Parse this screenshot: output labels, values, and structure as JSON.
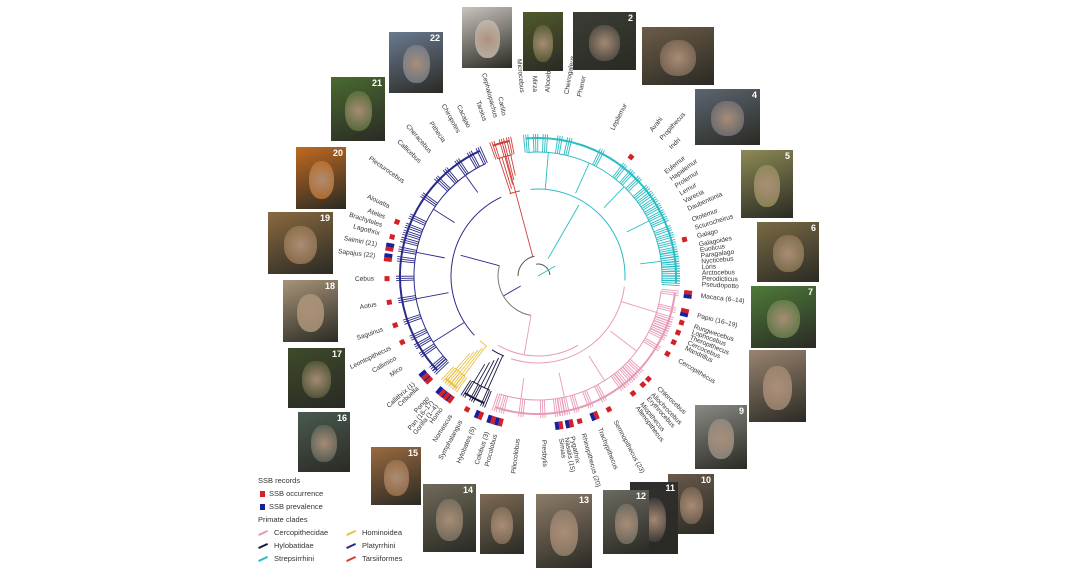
{
  "colors": {
    "Cercopithecidae": "#e79ab8",
    "Hylobatidae": "#1a1a40",
    "Strepsirrhini": "#2bbcc4",
    "Hominoidea": "#e8c24a",
    "Platyrrhini": "#2a2a8a",
    "Tarsiiformes": "#d0403a",
    "occurrence": "#d42027",
    "prevalence": "#1b1f9a"
  },
  "taxa": [
    {
      "name": "Tarsius",
      "clade": "Tarsiiformes"
    },
    {
      "name": "Cephalopachus",
      "clade": "Tarsiiformes"
    },
    {
      "name": "Carlito",
      "clade": "Tarsiiformes"
    },
    {
      "name": "Microcebus",
      "clade": "Strepsirrhini"
    },
    {
      "name": "Mirza",
      "clade": "Strepsirrhini"
    },
    {
      "name": "Allocebus",
      "clade": "Strepsirrhini"
    },
    {
      "name": "Cheirogaleus",
      "clade": "Strepsirrhini"
    },
    {
      "name": "Phaner",
      "clade": "Strepsirrhini"
    },
    {
      "name": "Lepilemur",
      "clade": "Strepsirrhini"
    },
    {
      "name": "Avahi",
      "clade": "Strepsirrhini",
      "ssb": "occurrence"
    },
    {
      "name": "Propithecus",
      "clade": "Strepsirrhini"
    },
    {
      "name": "Indri",
      "clade": "Strepsirrhini"
    },
    {
      "name": "Eulemur",
      "clade": "Strepsirrhini"
    },
    {
      "name": "Hapalemur",
      "clade": "Strepsirrhini"
    },
    {
      "name": "Prolemur",
      "clade": "Strepsirrhini"
    },
    {
      "name": "Lemur",
      "clade": "Strepsirrhini"
    },
    {
      "name": "Varecia",
      "clade": "Strepsirrhini"
    },
    {
      "name": "Daubentonia",
      "clade": "Strepsirrhini"
    },
    {
      "name": "Otolemur",
      "clade": "Strepsirrhini"
    },
    {
      "name": "Sciurocheirus",
      "clade": "Strepsirrhini"
    },
    {
      "name": "Galago",
      "clade": "Strepsirrhini",
      "ssb": "occurrence"
    },
    {
      "name": "Galagoides",
      "clade": "Strepsirrhini"
    },
    {
      "name": "Euoticus",
      "clade": "Strepsirrhini"
    },
    {
      "name": "Paragalago",
      "clade": "Strepsirrhini"
    },
    {
      "name": "Nycticebus",
      "clade": "Strepsirrhini"
    },
    {
      "name": "Loris",
      "clade": "Strepsirrhini"
    },
    {
      "name": "Arctocebus",
      "clade": "Strepsirrhini"
    },
    {
      "name": "Perodicticus",
      "clade": "Strepsirrhini"
    },
    {
      "name": "Pseudopotto",
      "clade": "Strepsirrhini"
    },
    {
      "name": "Macaca (6–14)",
      "clade": "Cercopithecidae",
      "ssb": "prevalence"
    },
    {
      "name": "Papio (16–19)",
      "clade": "Cercopithecidae",
      "ssb": "prevalence"
    },
    {
      "name": "Rungwecebus",
      "clade": "Cercopithecidae",
      "ssb": "occurrence"
    },
    {
      "name": "Lophocebus",
      "clade": "Cercopithecidae"
    },
    {
      "name": "Theropithecus",
      "clade": "Cercopithecidae",
      "ssb": "occurrence"
    },
    {
      "name": "Cercocebus",
      "clade": "Cercopithecidae"
    },
    {
      "name": "Mandrillus",
      "clade": "Cercopithecidae",
      "ssb": "occurrence"
    },
    {
      "name": "Cercopithecus",
      "clade": "Cercopithecidae",
      "ssb": "occurrence"
    },
    {
      "name": "Chlorocebus",
      "clade": "Cercopithecidae",
      "ssb": "occurrence"
    },
    {
      "name": "Allochrocebus",
      "clade": "Cercopithecidae",
      "ssb": "occurrence"
    },
    {
      "name": "Erythrocebus",
      "clade": "Cercopithecidae"
    },
    {
      "name": "Miopithecus",
      "clade": "Cercopithecidae",
      "ssb": "occurrence"
    },
    {
      "name": "Allenopithecus",
      "clade": "Cercopithecidae"
    },
    {
      "name": "Semnopithecus (23)",
      "clade": "Cercopithecidae",
      "ssb": "occurrence"
    },
    {
      "name": "Trachypithecus",
      "clade": "Cercopithecidae",
      "ssb": "prevalence"
    },
    {
      "name": "Rhinopithecus (20)",
      "clade": "Cercopithecidae",
      "ssb": "occurrence"
    },
    {
      "name": "Pygathrix",
      "clade": "Cercopithecidae",
      "ssb": "prevalence"
    },
    {
      "name": "Nasalis (15)",
      "clade": "Cercopithecidae"
    },
    {
      "name": "Simias",
      "clade": "Cercopithecidae",
      "ssb": "prevalence"
    },
    {
      "name": "Presbytis",
      "clade": "Cercopithecidae"
    },
    {
      "name": "Piliocolobus",
      "clade": "Cercopithecidae"
    },
    {
      "name": "Procolobus",
      "clade": "Cercopithecidae",
      "ssb": "prevalence"
    },
    {
      "name": "Colobus (3)",
      "clade": "Cercopithecidae",
      "ssb": "prevalence"
    },
    {
      "name": "Hylobates (5)",
      "clade": "Hylobatidae",
      "ssb": "prevalence"
    },
    {
      "name": "Symphalangus",
      "clade": "Hylobatidae",
      "ssb": "occurrence"
    },
    {
      "name": "Nomascus",
      "clade": "Hylobatidae"
    },
    {
      "name": "Homo",
      "clade": "Hominoidea",
      "ssb": "prevalence"
    },
    {
      "name": "Gorilla (1–4)",
      "clade": "Hominoidea",
      "ssb": "prevalence"
    },
    {
      "name": "Pan (16–17)",
      "clade": "Hominoidea",
      "ssb": "prevalence"
    },
    {
      "name": "Pongo",
      "clade": "Hominoidea"
    },
    {
      "name": "Cebuella",
      "clade": "Platyrrhini",
      "ssb": "prevalence"
    },
    {
      "name": "Callithrix (1)",
      "clade": "Platyrrhini",
      "ssb": "prevalence"
    },
    {
      "name": "Mico",
      "clade": "Platyrrhini"
    },
    {
      "name": "Callimico",
      "clade": "Platyrrhini"
    },
    {
      "name": "Leontopithecus",
      "clade": "Platyrrhini",
      "ssb": "occurrence"
    },
    {
      "name": "Saguinus",
      "clade": "Platyrrhini",
      "ssb": "occurrence"
    },
    {
      "name": "Aotus",
      "clade": "Platyrrhini",
      "ssb": "occurrence"
    },
    {
      "name": "Cebus",
      "clade": "Platyrrhini",
      "ssb": "occurrence"
    },
    {
      "name": "Sapajus (22)",
      "clade": "Platyrrhini",
      "ssb": "prevalence"
    },
    {
      "name": "Saimiri (21)",
      "clade": "Platyrrhini",
      "ssb": "prevalence"
    },
    {
      "name": "Lagothrix",
      "clade": "Platyrrhini",
      "ssb": "occurrence"
    },
    {
      "name": "Brachyteles",
      "clade": "Platyrrhini"
    },
    {
      "name": "Ateles",
      "clade": "Platyrrhini",
      "ssb": "occurrence"
    },
    {
      "name": "Alouatta",
      "clade": "Platyrrhini"
    },
    {
      "name": "Plecturocebus",
      "clade": "Platyrrhini"
    },
    {
      "name": "Callicebus",
      "clade": "Platyrrhini"
    },
    {
      "name": "Cheracebus",
      "clade": "Platyrrhini"
    },
    {
      "name": "Pithecia",
      "clade": "Platyrrhini"
    },
    {
      "name": "Chiropotes",
      "clade": "Platyrrhini"
    },
    {
      "name": "Cacajao",
      "clade": "Platyrrhini"
    }
  ],
  "photos": [
    {
      "number": "",
      "tone": "#c9c4bd"
    },
    {
      "number": "",
      "tone": "#4f5a2c"
    },
    {
      "number": "2",
      "tone": "#3a3d36"
    },
    {
      "number": "",
      "tone": "#6b5c48"
    },
    {
      "number": "4",
      "tone": "#5c6670"
    },
    {
      "number": "5",
      "tone": "#8d8a55"
    },
    {
      "number": "6",
      "tone": "#7a6a45"
    },
    {
      "number": "7",
      "tone": "#4e7a3a"
    },
    {
      "number": "",
      "tone": "#9a8470"
    },
    {
      "number": "9",
      "tone": "#8a8a84"
    },
    {
      "number": "10",
      "tone": "#6a5a4a"
    },
    {
      "number": "11",
      "tone": "#2f2f2f"
    },
    {
      "number": "12",
      "tone": "#6a6a60"
    },
    {
      "number": "13",
      "tone": "#8d7b68"
    },
    {
      "number": "",
      "tone": "#7c6a55"
    },
    {
      "number": "14",
      "tone": "#6f6a5a"
    },
    {
      "number": "15",
      "tone": "#9a6a40"
    },
    {
      "number": "16",
      "tone": "#4a5a50"
    },
    {
      "number": "17",
      "tone": "#3e4a2a"
    },
    {
      "number": "18",
      "tone": "#a89478"
    },
    {
      "number": "19",
      "tone": "#8a6a40"
    },
    {
      "number": "20",
      "tone": "#c06a20"
    },
    {
      "number": "21",
      "tone": "#4a6a30"
    },
    {
      "number": "22",
      "tone": "#6a7a90"
    }
  ],
  "legend": {
    "ssb_title": "SSB records",
    "occurrence": "SSB occurrence",
    "prevalence": "SSB prevalence",
    "clades_title": "Primate clades",
    "clades": [
      "Cercopithecidae",
      "Hominoidea",
      "Hylobatidae",
      "Platyrrhini",
      "Strepsirrhini",
      "Tarsiiformes"
    ]
  }
}
